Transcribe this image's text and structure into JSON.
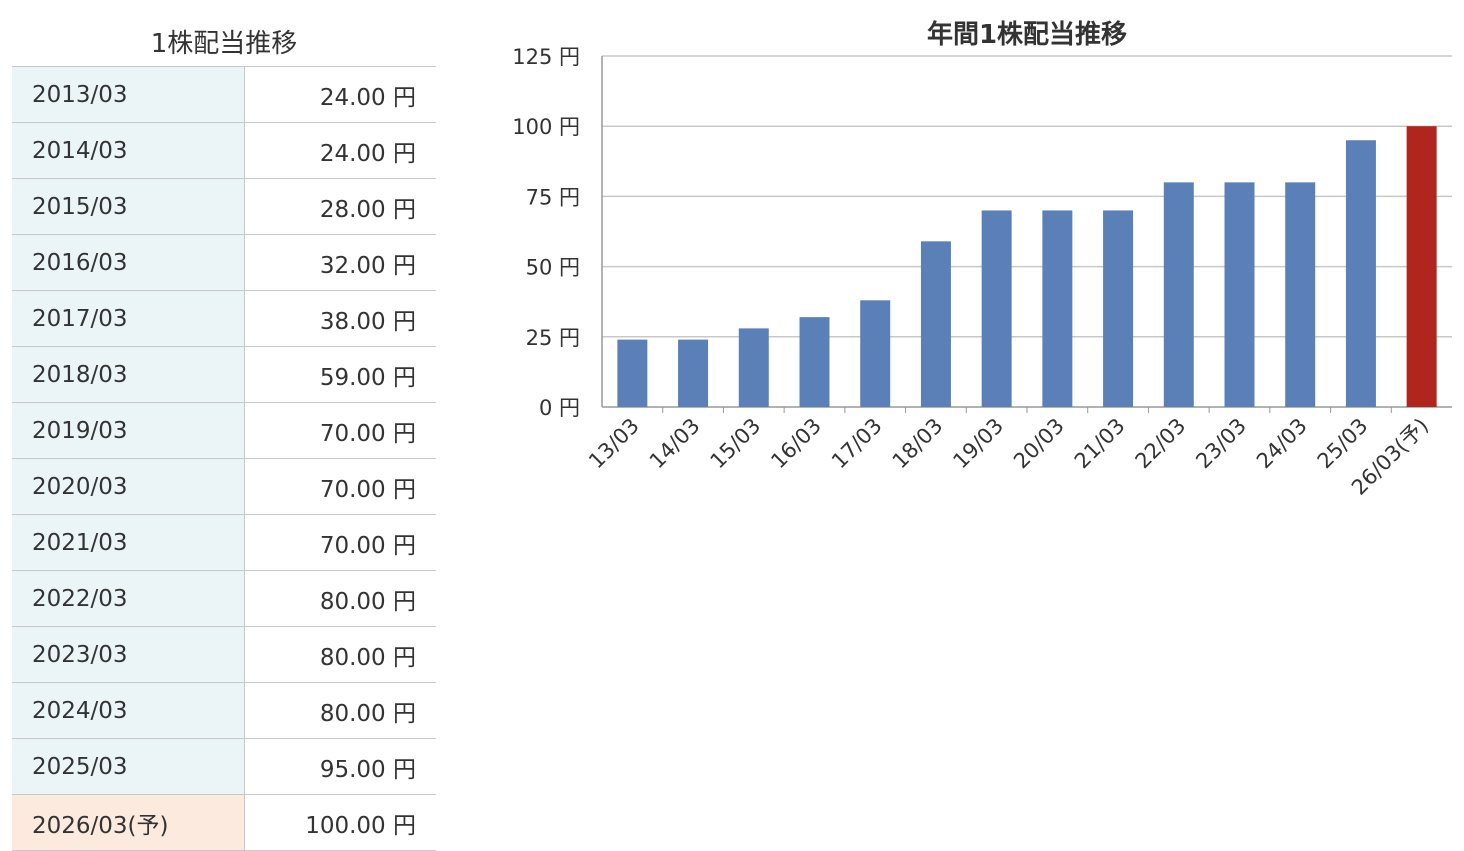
{
  "table": {
    "title": "1株配当推移",
    "rows": [
      {
        "period": "2013/03",
        "value": "24.00 円"
      },
      {
        "period": "2014/03",
        "value": "24.00 円"
      },
      {
        "period": "2015/03",
        "value": "28.00 円"
      },
      {
        "period": "2016/03",
        "value": "32.00 円"
      },
      {
        "period": "2017/03",
        "value": "38.00 円"
      },
      {
        "period": "2018/03",
        "value": "59.00 円"
      },
      {
        "period": "2019/03",
        "value": "70.00 円"
      },
      {
        "period": "2020/03",
        "value": "70.00 円"
      },
      {
        "period": "2021/03",
        "value": "70.00 円"
      },
      {
        "period": "2022/03",
        "value": "80.00 円"
      },
      {
        "period": "2023/03",
        "value": "80.00 円"
      },
      {
        "period": "2024/03",
        "value": "80.00 円"
      },
      {
        "period": "2025/03",
        "value": "95.00 円"
      },
      {
        "period": "2026/03(予)",
        "value": "100.00 円"
      }
    ]
  },
  "chart_data": {
    "type": "bar",
    "title": "年間1株配当推移",
    "xlabel": "",
    "ylabel": "",
    "categories": [
      "13/03",
      "14/03",
      "15/03",
      "16/03",
      "17/03",
      "18/03",
      "19/03",
      "20/03",
      "21/03",
      "22/03",
      "23/03",
      "24/03",
      "25/03",
      "26/03(予)"
    ],
    "values": [
      24,
      24,
      28,
      32,
      38,
      59,
      70,
      70,
      70,
      80,
      80,
      80,
      95,
      100
    ],
    "ylim": [
      0,
      125
    ],
    "yticks": [
      0,
      25,
      50,
      75,
      100,
      125
    ],
    "ytick_labels": [
      "0 円",
      "25 円",
      "50 円",
      "75 円",
      "100 円",
      "125 円"
    ],
    "grid": true,
    "colors": {
      "actual": "#5b80b8",
      "forecast": "#b0261e",
      "grid": "#c8c8c8",
      "table_year_bg": "#ebf5f8",
      "table_forecast_bg": "#fbeadd"
    },
    "highlight_last_as_forecast": true
  }
}
